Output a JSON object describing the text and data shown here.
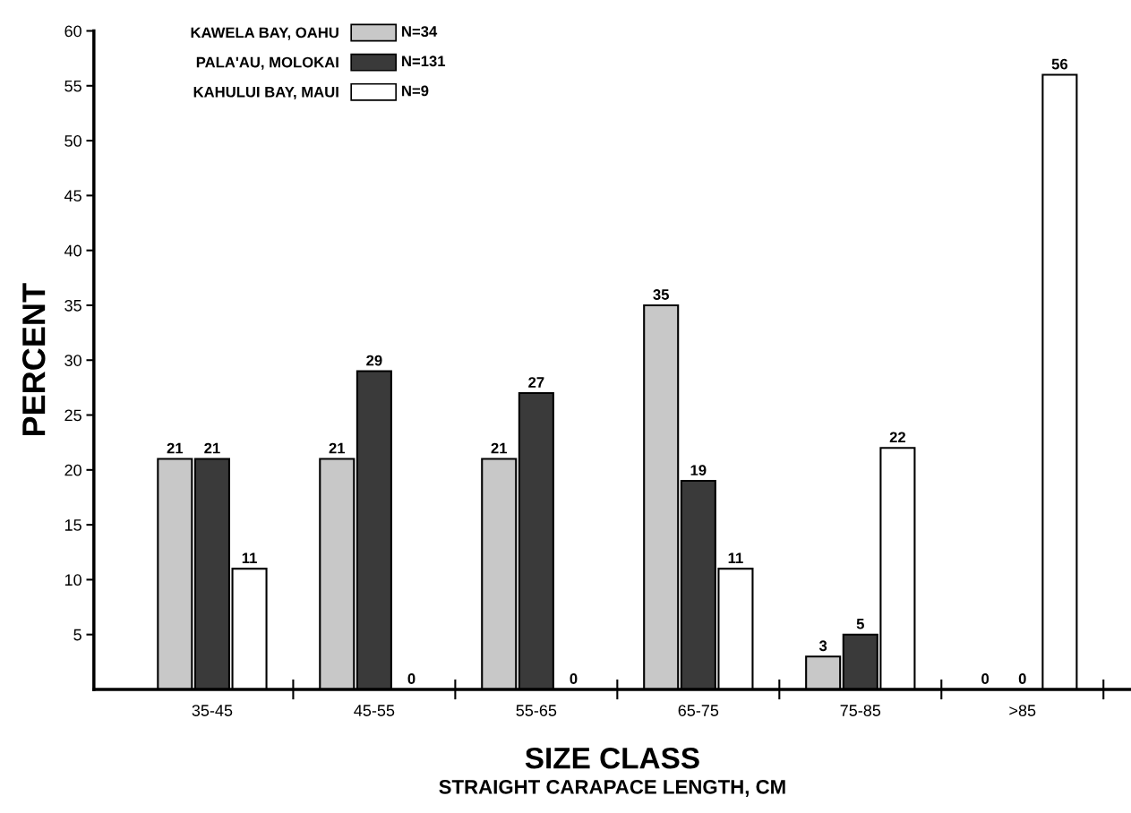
{
  "chart_data": {
    "type": "bar",
    "xlabel": "SIZE CLASS",
    "ylabel": "PERCENT",
    "categories": [
      "35-45",
      "45-55",
      "55-65",
      "65-75",
      "75-85",
      ">85"
    ],
    "series": [
      {
        "name": "KAWELA BAY, OAHU",
        "color": "#c8c8c8",
        "values": [
          21,
          21,
          21,
          35,
          3,
          0
        ]
      },
      {
        "name": "PALA'AU, MOLOKAI",
        "color": "#3a3a3a",
        "values": [
          21,
          29,
          27,
          19,
          5,
          0
        ]
      },
      {
        "name": "KAHULUI BAY, MAUI",
        "color": "#ffffff",
        "values": [
          11,
          0,
          0,
          11,
          22,
          56
        ]
      }
    ],
    "annotations": [
      "N=34",
      "N=131",
      "N=9",
      "STRAIGHT CARAPACE LENGTH, CM"
    ],
    "ylim": [
      0,
      60
    ],
    "yticks": [
      5,
      10,
      15,
      20,
      25,
      30,
      35,
      40,
      45,
      50,
      55,
      60
    ],
    "data_labels": true,
    "legend": "top left",
    "grid": false
  }
}
